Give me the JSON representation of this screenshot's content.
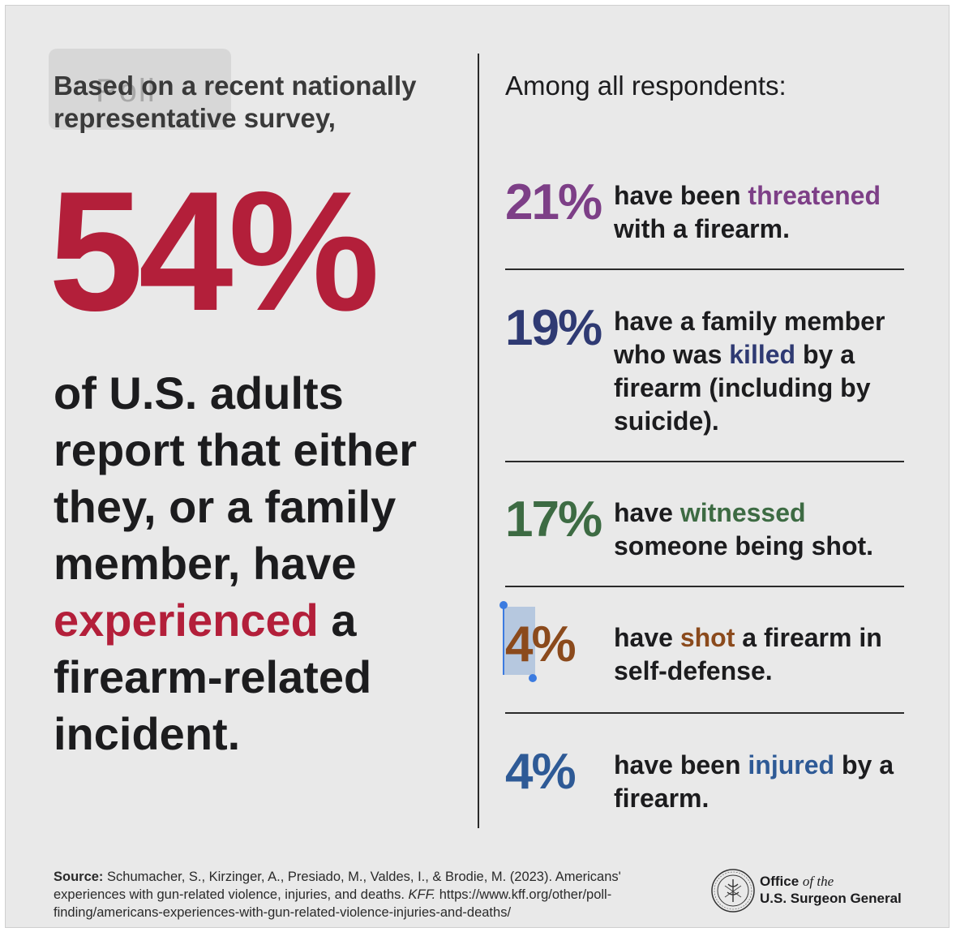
{
  "intro": "Based on a recent nationally representative survey,",
  "headline_percent": "54%",
  "statement": {
    "before": "of U.S. adults report that either they, or a family member, have",
    "highlight": "experienced",
    "after": "a firearm-related incident."
  },
  "among_title": "Among all respondents:",
  "stats": [
    {
      "percent": "21%",
      "pre": "have been",
      "highlight": "threatened",
      "post": "with a firearm.",
      "color": "#7d3f87"
    },
    {
      "percent": "19%",
      "pre": "have a family member who was",
      "highlight": "killed",
      "post": "by a firearm (including by suicide).",
      "color": "#2f3a73"
    },
    {
      "percent": "17%",
      "pre": "have",
      "highlight": "witnessed",
      "post": "someone being shot.",
      "color": "#3d6b43"
    },
    {
      "percent": "4%",
      "pre": "have",
      "highlight": "shot",
      "post": "a firearm in self-defense.",
      "color": "#8b4a1c"
    },
    {
      "percent": "4%",
      "pre": "have been",
      "highlight": "injured",
      "post": "by a firearm.",
      "color": "#2e5a96"
    }
  ],
  "source": {
    "label": "Source:",
    "text_a": "Schumacher, S., Kirzinger, A., Presiado, M., Valdes, I., & Brodie, M. (2023). Americans' experiences with gun-related violence, injuries, and deaths.",
    "publisher": "KFF.",
    "url": "https://www.kff.org/other/poll-finding/americans-experiences-with-gun-related-violence-injuries-and-deaths/"
  },
  "office": {
    "line1_a": "Office",
    "line1_b": "of the",
    "line2": "U.S. Surgeon General"
  },
  "popup_ghost_text": "Poll"
}
